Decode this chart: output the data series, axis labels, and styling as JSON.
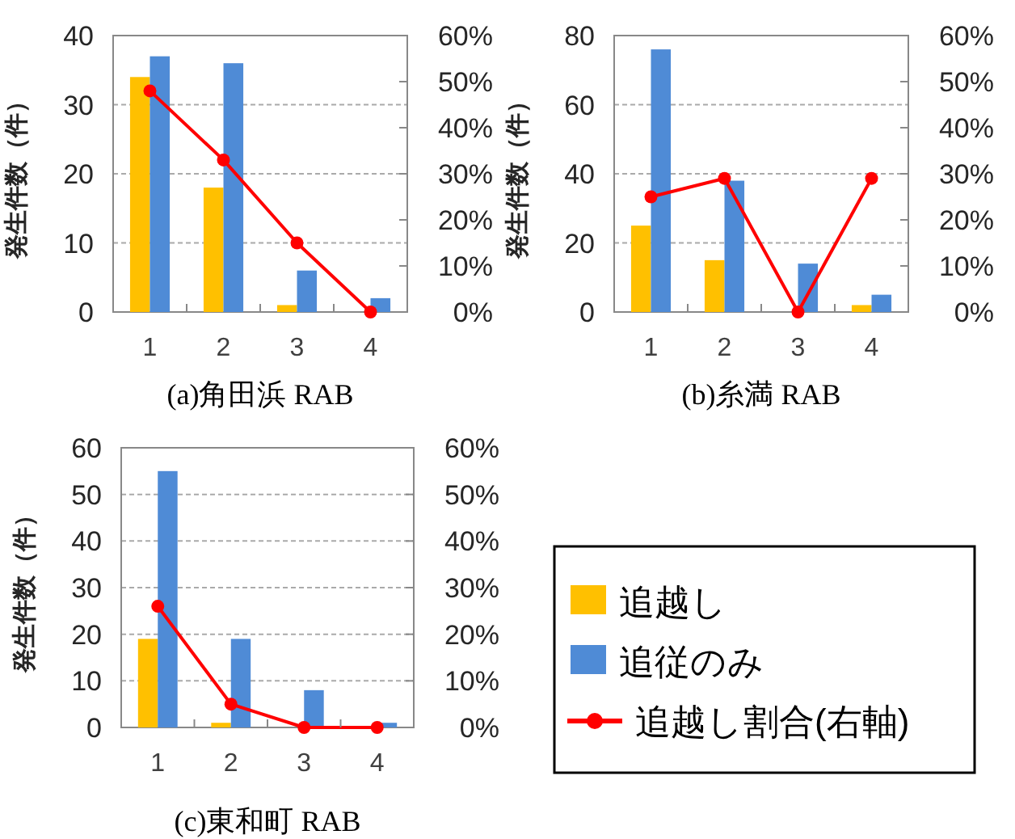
{
  "chart_data": [
    {
      "type": "bar",
      "title": "(a)角田浜 RAB",
      "ylabel": "発生件数（件）",
      "categories": [
        "1",
        "2",
        "3",
        "4"
      ],
      "ylim": [
        0,
        40
      ],
      "yticks": [
        0,
        10,
        20,
        30,
        40
      ],
      "y2lim": [
        0,
        60
      ],
      "y2ticks": [
        {
          "value": 0,
          "label": "0%"
        },
        {
          "value": 10,
          "label": "10%"
        },
        {
          "value": 20,
          "label": "20%"
        },
        {
          "value": 30,
          "label": "30%"
        },
        {
          "value": 40,
          "label": "40%"
        },
        {
          "value": 50,
          "label": "50%"
        },
        {
          "value": 60,
          "label": "60%"
        }
      ],
      "grid": "y",
      "legend": false,
      "series": [
        {
          "color": "#ffc000",
          "values": [
            34,
            18,
            1,
            0
          ]
        },
        {
          "color": "#4f8bd6",
          "values": [
            37,
            36,
            6,
            2
          ]
        },
        {
          "type": "line",
          "axis": "y2",
          "marker": "circle",
          "color": "#ff0000",
          "values": [
            48,
            33,
            15,
            0
          ]
        }
      ]
    },
    {
      "type": "bar",
      "title": "(b)糸満 RAB",
      "ylabel": "発生件数（件）",
      "categories": [
        "1",
        "2",
        "3",
        "4"
      ],
      "ylim": [
        0,
        80
      ],
      "yticks": [
        0,
        20,
        40,
        60,
        80
      ],
      "y2lim": [
        0,
        60
      ],
      "y2ticks": [
        {
          "value": 0,
          "label": "0%"
        },
        {
          "value": 10,
          "label": "10%"
        },
        {
          "value": 20,
          "label": "20%"
        },
        {
          "value": 30,
          "label": "30%"
        },
        {
          "value": 40,
          "label": "40%"
        },
        {
          "value": 50,
          "label": "50%"
        },
        {
          "value": 60,
          "label": "60%"
        }
      ],
      "grid": "y",
      "legend": false,
      "series": [
        {
          "color": "#ffc000",
          "values": [
            25,
            15,
            0,
            2
          ]
        },
        {
          "color": "#4f8bd6",
          "values": [
            76,
            38,
            14,
            5
          ]
        },
        {
          "type": "line",
          "axis": "y2",
          "marker": "circle",
          "color": "#ff0000",
          "values": [
            25,
            29,
            0,
            29
          ]
        }
      ]
    },
    {
      "type": "bar",
      "title": "(c)東和町 RAB",
      "ylabel": "発生件数（件）",
      "categories": [
        "1",
        "2",
        "3",
        "4"
      ],
      "ylim": [
        0,
        60
      ],
      "yticks": [
        0,
        10,
        20,
        30,
        40,
        50,
        60
      ],
      "y2lim": [
        0,
        60
      ],
      "y2ticks": [
        {
          "value": 0,
          "label": "0%"
        },
        {
          "value": 10,
          "label": "10%"
        },
        {
          "value": 20,
          "label": "20%"
        },
        {
          "value": 30,
          "label": "30%"
        },
        {
          "value": 40,
          "label": "40%"
        },
        {
          "value": 50,
          "label": "50%"
        },
        {
          "value": 60,
          "label": "60%"
        }
      ],
      "grid": "y",
      "legend": "right",
      "series": [
        {
          "name": "追越し",
          "color": "#ffc000",
          "values": [
            19,
            1,
            0,
            0
          ]
        },
        {
          "name": "追従のみ",
          "color": "#4f8bd6",
          "values": [
            55,
            19,
            8,
            1
          ]
        },
        {
          "name": "追越し割合(右軸)",
          "type": "line",
          "axis": "y2",
          "marker": "circle",
          "color": "#ff0000",
          "values": [
            26,
            5,
            0,
            0
          ]
        }
      ]
    }
  ]
}
